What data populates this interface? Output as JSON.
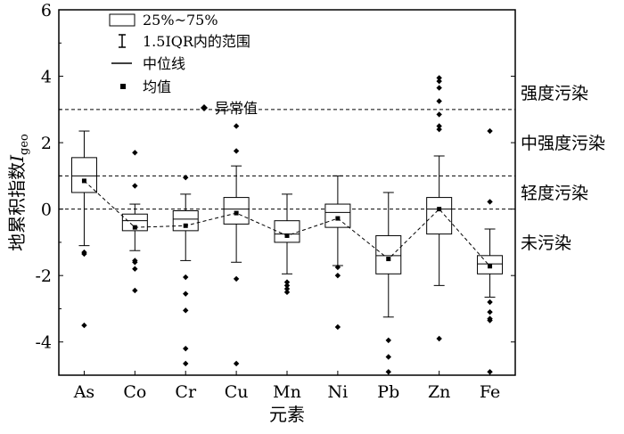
{
  "chart_data": {
    "type": "boxplot",
    "xlabel": "元素",
    "ylabel": "地累积指数",
    "ylabel_symbol": "I",
    "ylabel_subscript": "geo",
    "ylim": [
      -5,
      6
    ],
    "yticks": [
      -4,
      -2,
      0,
      2,
      4,
      6
    ],
    "categories": [
      "As",
      "Co",
      "Cr",
      "Cu",
      "Mn",
      "Ni",
      "Pb",
      "Zn",
      "Fe"
    ],
    "boxes": [
      {
        "element": "As",
        "min": -1.1,
        "q1": 0.5,
        "median": 1.0,
        "q3": 1.55,
        "max": 2.35,
        "mean": 0.85,
        "outliers": [
          -1.3,
          -1.35,
          -3.5
        ]
      },
      {
        "element": "Co",
        "min": -1.25,
        "q1": -0.65,
        "median": -0.35,
        "q3": -0.15,
        "max": 0.15,
        "mean": -0.55,
        "outliers": [
          1.7,
          0.7,
          -1.55,
          -1.6,
          -1.8,
          -2.45
        ]
      },
      {
        "element": "Cr",
        "min": -1.55,
        "q1": -0.65,
        "median": -0.3,
        "q3": -0.05,
        "max": 0.45,
        "mean": -0.5,
        "outliers": [
          0.95,
          -2.05,
          -2.55,
          -3.05,
          -4.2,
          -4.65
        ]
      },
      {
        "element": "Cu",
        "min": -1.6,
        "q1": -0.45,
        "median": 0.0,
        "q3": 0.35,
        "max": 1.3,
        "mean": -0.12,
        "outliers": [
          2.5,
          1.75,
          -2.1,
          -4.65
        ]
      },
      {
        "element": "Mn",
        "min": -1.95,
        "q1": -1.0,
        "median": -0.75,
        "q3": -0.35,
        "max": 0.45,
        "mean": -0.8,
        "outliers": [
          -2.2,
          -2.3,
          -2.4,
          -2.5
        ]
      },
      {
        "element": "Ni",
        "min": -1.7,
        "q1": -0.55,
        "median": -0.1,
        "q3": 0.15,
        "max": 1.0,
        "mean": -0.28,
        "outliers": [
          -1.75,
          -2.0,
          -3.55
        ]
      },
      {
        "element": "Pb",
        "min": -3.25,
        "q1": -1.95,
        "median": -1.4,
        "q3": -0.8,
        "max": 0.5,
        "mean": -1.5,
        "outliers": [
          -3.95,
          -4.45,
          -4.9
        ]
      },
      {
        "element": "Zn",
        "min": -2.3,
        "q1": -0.75,
        "median": 0.0,
        "q3": 0.35,
        "max": 1.6,
        "mean": 0.0,
        "outliers": [
          3.95,
          3.85,
          3.65,
          3.25,
          2.85,
          2.5,
          2.4,
          -3.9
        ]
      },
      {
        "element": "Fe",
        "min": -2.65,
        "q1": -1.95,
        "median": -1.65,
        "q3": -1.4,
        "max": -0.6,
        "mean": -1.72,
        "outliers": [
          2.35,
          0.22,
          -2.8,
          -3.1,
          -3.3,
          -3.35,
          -4.9
        ]
      }
    ],
    "thresholds": [
      0,
      1,
      3
    ],
    "zones": [
      {
        "label": "强度污染",
        "y": 3.5
      },
      {
        "label": "中强度污染",
        "y": 2.0
      },
      {
        "label": "轻度污染",
        "y": 0.5
      },
      {
        "label": "未污染",
        "y": -1.0
      }
    ],
    "legend": {
      "position": "top-left",
      "items": [
        {
          "symbol": "box",
          "label": "25%~75%"
        },
        {
          "symbol": "whisker",
          "label": "1.5IQR内的范围"
        },
        {
          "symbol": "line",
          "label": "中位线"
        },
        {
          "symbol": "square",
          "label": "均值"
        },
        {
          "symbol": "diamond",
          "label": "异常值"
        }
      ]
    },
    "mean_line": "dashed",
    "grid": false
  }
}
